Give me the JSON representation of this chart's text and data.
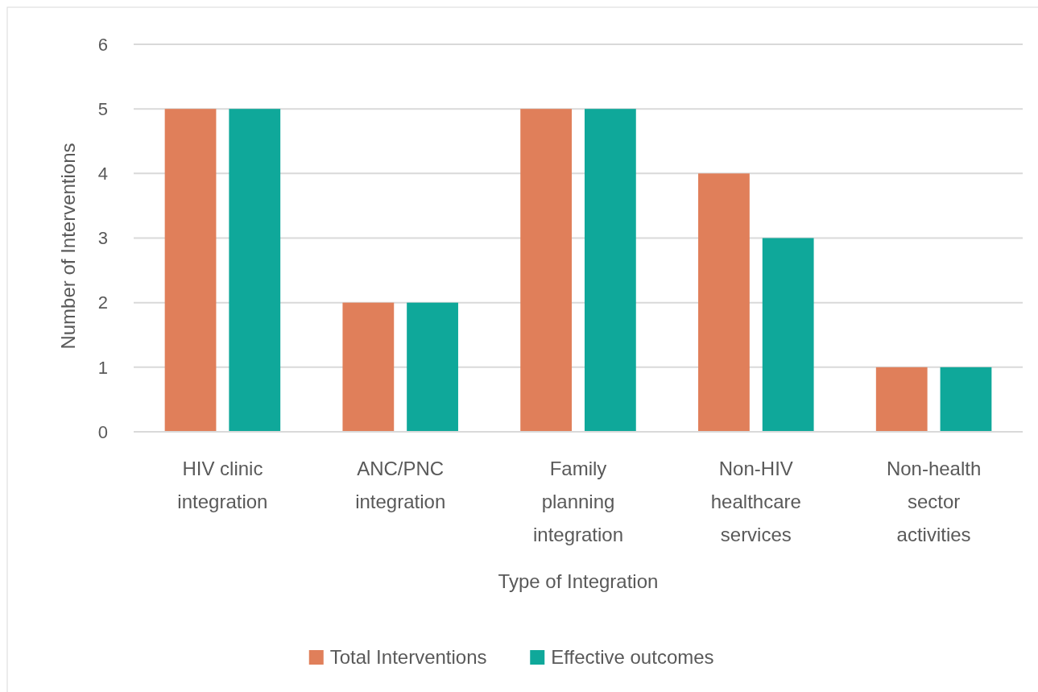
{
  "chart_data": {
    "type": "bar",
    "xlabel": "Type of Integration",
    "ylabel": "Number of Interventions",
    "categories": [
      "HIV clinic integration",
      "ANC/PNC integration",
      "Family planning integration",
      "Non-HIV healthcare services",
      "Non-health sector activities"
    ],
    "series": [
      {
        "name": "Total Interventions",
        "color": "#e07f5a",
        "values": [
          5,
          2,
          5,
          4,
          1
        ]
      },
      {
        "name": "Effective outcomes",
        "color": "#0fa89a",
        "values": [
          5,
          2,
          5,
          3,
          1
        ]
      }
    ],
    "ylim": [
      0,
      6
    ],
    "yticks": [
      0,
      1,
      2,
      3,
      4,
      5,
      6
    ],
    "grid": "y",
    "legend": "bottom"
  }
}
